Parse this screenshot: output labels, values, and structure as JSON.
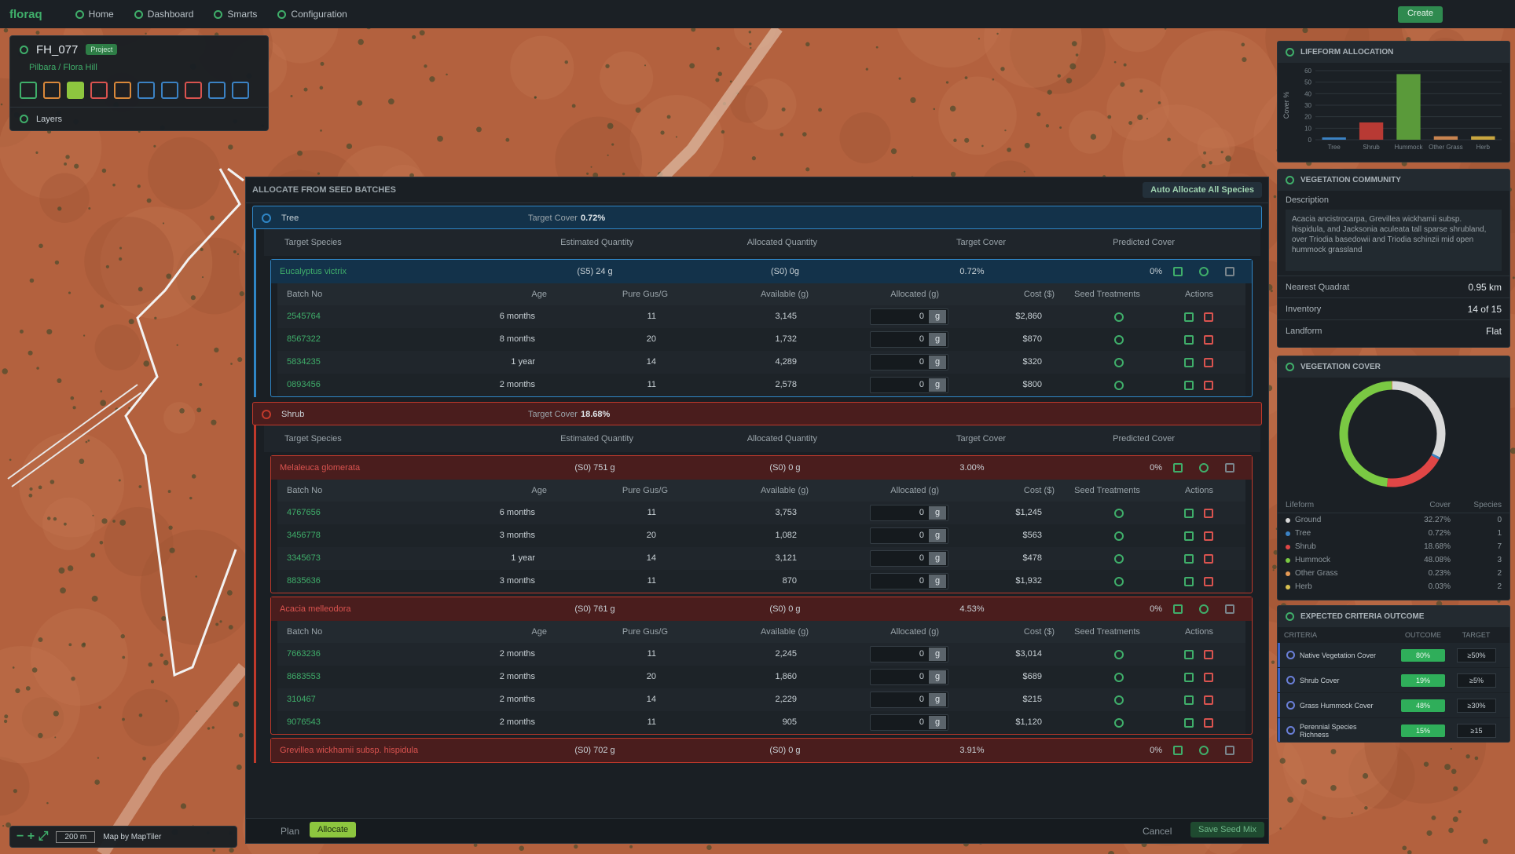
{
  "nav": {
    "brand": "floraq",
    "items": [
      "Home",
      "Dashboard",
      "Smarts",
      "Configuration"
    ],
    "create": "Create"
  },
  "project": {
    "name": "FH_077",
    "tag": "Project",
    "breadcrumb": "Pilbara / Flora Hill",
    "layers": "Layers"
  },
  "map": {
    "scale": "200 m",
    "attribution": "Map by MapTiler"
  },
  "allocation": {
    "title": "ALLOCATE FROM SEED BATCHES",
    "auto_allocate": "Auto Allocate All Species",
    "species_columns": [
      "Target Species",
      "Estimated Quantity",
      "Allocated Quantity",
      "Target Cover",
      "Predicted Cover"
    ],
    "batch_columns": [
      "Batch No",
      "Age",
      "Pure Gus/G",
      "Available (g)",
      "Allocated (g)",
      "Cost ($)",
      "Seed Treatments",
      "Actions"
    ],
    "unit": "g",
    "groups": [
      {
        "name": "Tree",
        "target_label": "Target Cover",
        "target": "0.72%",
        "species": [
          {
            "name": "Eucalyptus victrix",
            "estimated": "(S5) 24 g",
            "allocated": "(S0) 0g",
            "target_cover": "0.72%",
            "predicted": "0%",
            "batches": [
              {
                "batch": "2545764",
                "age": "6 months",
                "pure": 11,
                "available": "3,145",
                "allocated": 0,
                "cost": "$2,860"
              },
              {
                "batch": "8567322",
                "age": "8 months",
                "pure": 20,
                "available": "1,732",
                "allocated": 0,
                "cost": "$870"
              },
              {
                "batch": "5834235",
                "age": "1 year",
                "pure": 14,
                "available": "4,289",
                "allocated": 0,
                "cost": "$320"
              },
              {
                "batch": "0893456",
                "age": "2 months",
                "pure": 11,
                "available": "2,578",
                "allocated": 0,
                "cost": "$800"
              }
            ]
          }
        ]
      },
      {
        "name": "Shrub",
        "target_label": "Target Cover",
        "target": "18.68%",
        "species": [
          {
            "name": "Melaleuca glomerata",
            "estimated": "(S0) 751 g",
            "allocated": "(S0) 0 g",
            "target_cover": "3.00%",
            "predicted": "0%",
            "batches": [
              {
                "batch": "4767656",
                "age": "6 months",
                "pure": 11,
                "available": "3,753",
                "allocated": 0,
                "cost": "$1,245"
              },
              {
                "batch": "3456778",
                "age": "3 months",
                "pure": 20,
                "available": "1,082",
                "allocated": 0,
                "cost": "$563"
              },
              {
                "batch": "3345673",
                "age": "1 year",
                "pure": 14,
                "available": "3,121",
                "allocated": 0,
                "cost": "$478"
              },
              {
                "batch": "8835636",
                "age": "3 months",
                "pure": 11,
                "available": "870",
                "allocated": 0,
                "cost": "$1,932"
              }
            ]
          },
          {
            "name": "Acacia melleodora",
            "estimated": "(S0) 761 g",
            "allocated": "(S0) 0 g",
            "target_cover": "4.53%",
            "predicted": "0%",
            "batches": [
              {
                "batch": "7663236",
                "age": "2 months",
                "pure": 11,
                "available": "2,245",
                "allocated": 0,
                "cost": "$3,014"
              },
              {
                "batch": "8683553",
                "age": "2 months",
                "pure": 20,
                "available": "1,860",
                "allocated": 0,
                "cost": "$689"
              },
              {
                "batch": "310467",
                "age": "2 months",
                "pure": 14,
                "available": "2,229",
                "allocated": 0,
                "cost": "$215"
              },
              {
                "batch": "9076543",
                "age": "2 months",
                "pure": 11,
                "available": "905",
                "allocated": 0,
                "cost": "$1,120"
              }
            ]
          },
          {
            "name": "Grevillea wickhamii subsp. hispidula",
            "estimated": "(S0) 702 g",
            "allocated": "(S0) 0 g",
            "target_cover": "3.91%",
            "predicted": "0%",
            "batches": []
          }
        ]
      }
    ],
    "footer": {
      "plan": "Plan",
      "allocate": "Allocate",
      "cancel": "Cancel",
      "save": "Save Seed Mix"
    }
  },
  "vegetation_community": {
    "title": "VEGETATION COMMUNITY",
    "description_label": "Description",
    "description": "Acacia ancistrocarpa, Grevillea wickhamii subsp. hispidula, and Jacksonia aculeata tall sparse shrubland, over Triodia basedowii and Triodia schinzii mid open hummock grassland",
    "facts": [
      {
        "label": "Nearest Quadrat",
        "value": "0.95 km"
      },
      {
        "label": "Inventory",
        "value": "14 of 15"
      },
      {
        "label": "Landform",
        "value": "Flat"
      }
    ]
  },
  "vegetation_cover": {
    "columns": [
      "Lifeform",
      "Cover",
      "Species"
    ],
    "species": [
      0,
      1,
      7,
      3,
      2,
      2
    ]
  },
  "criteria": {
    "title": "EXPECTED CRITERIA OUTCOME",
    "columns": [
      "CRITERIA",
      "OUTCOME",
      "TARGET"
    ],
    "rows": [
      {
        "name": "Native Vegetation Cover",
        "outcome": "80%",
        "target": "≥50%"
      },
      {
        "name": "Shrub Cover",
        "outcome": "19%",
        "target": "≥5%"
      },
      {
        "name": "Grass Hummock Cover",
        "outcome": "48%",
        "target": "≥30%"
      },
      {
        "name": "Perennial Species Richness",
        "outcome": "15%",
        "target": "≥15"
      }
    ]
  },
  "chart_data": [
    {
      "type": "bar",
      "title": "LIFEFORM ALLOCATION",
      "y_label": "Cover %",
      "categories": [
        "Tree",
        "Shrub",
        "Hummock",
        "Other Grass",
        "Herb"
      ],
      "values": [
        2,
        15,
        57,
        3,
        3
      ],
      "colors": [
        "#3b82c4",
        "#b83a34",
        "#5a9a3a",
        "#c98450",
        "#c9a640"
      ],
      "ylim": [
        0,
        60
      ],
      "yticks": [
        0,
        10,
        20,
        30,
        40,
        50,
        60
      ]
    },
    {
      "type": "pie",
      "title": "VEGETATION COVER",
      "categories": [
        "Ground",
        "Tree",
        "Shrub",
        "Hummock",
        "Other Grass",
        "Herb"
      ],
      "values": [
        32.27,
        0.72,
        18.68,
        48.08,
        0.23,
        0.03
      ],
      "value_labels": [
        "32.27%",
        "0.72%",
        "18.68%",
        "48.08%",
        "0.23%",
        "0.03%"
      ],
      "colors": [
        "#d9d9d9",
        "#3b82c4",
        "#e04646",
        "#7ac943",
        "#e69a55",
        "#d8c050"
      ]
    }
  ]
}
